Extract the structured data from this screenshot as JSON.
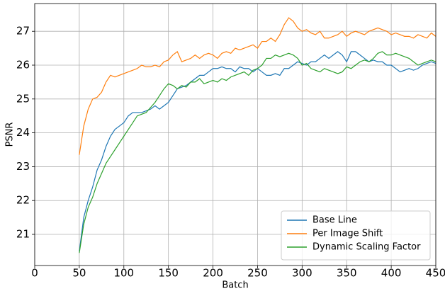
{
  "chart_data": {
    "type": "line",
    "xlabel": "Batch",
    "ylabel": "PSNR",
    "x": [
      50,
      55,
      60,
      65,
      70,
      75,
      80,
      85,
      90,
      95,
      100,
      105,
      110,
      115,
      120,
      125,
      130,
      135,
      140,
      145,
      150,
      155,
      160,
      165,
      170,
      175,
      180,
      185,
      190,
      195,
      200,
      205,
      210,
      215,
      220,
      225,
      230,
      235,
      240,
      245,
      250,
      255,
      260,
      265,
      270,
      275,
      280,
      285,
      290,
      295,
      300,
      305,
      310,
      315,
      320,
      325,
      330,
      335,
      340,
      345,
      350,
      355,
      360,
      365,
      370,
      375,
      380,
      385,
      390,
      395,
      400,
      405,
      410,
      415,
      420,
      425,
      430,
      435,
      440,
      445,
      450
    ],
    "series": [
      {
        "name": "Base Line",
        "color": "#1f77b4",
        "values": [
          20.5,
          21.5,
          22.0,
          22.4,
          22.9,
          23.2,
          23.6,
          23.9,
          24.1,
          24.2,
          24.3,
          24.5,
          24.6,
          24.6,
          24.6,
          24.65,
          24.7,
          24.8,
          24.7,
          24.8,
          24.9,
          25.1,
          25.3,
          25.35,
          25.4,
          25.5,
          25.6,
          25.7,
          25.7,
          25.8,
          25.9,
          25.9,
          25.95,
          25.9,
          25.9,
          25.8,
          25.95,
          25.9,
          25.9,
          25.8,
          25.9,
          25.8,
          25.7,
          25.7,
          25.75,
          25.7,
          25.9,
          25.9,
          26.0,
          26.1,
          26.05,
          26.0,
          26.1,
          26.1,
          26.2,
          26.3,
          26.2,
          26.3,
          26.4,
          26.3,
          26.1,
          26.4,
          26.4,
          26.3,
          26.2,
          26.1,
          26.15,
          26.1,
          26.1,
          26.0,
          26.0,
          25.9,
          25.8,
          25.85,
          25.9,
          25.85,
          25.9,
          26.0,
          26.05,
          26.1,
          26.05
        ]
      },
      {
        "name": "Per Image Shift",
        "color": "#ff7f0e",
        "values": [
          23.35,
          24.2,
          24.7,
          25.0,
          25.05,
          25.2,
          25.5,
          25.7,
          25.65,
          25.7,
          25.75,
          25.8,
          25.85,
          25.9,
          26.0,
          25.95,
          25.95,
          26.0,
          25.95,
          26.1,
          26.15,
          26.3,
          26.4,
          26.1,
          26.15,
          26.2,
          26.3,
          26.2,
          26.3,
          26.35,
          26.3,
          26.2,
          26.35,
          26.4,
          26.35,
          26.5,
          26.45,
          26.5,
          26.55,
          26.6,
          26.5,
          26.7,
          26.7,
          26.8,
          26.7,
          26.9,
          27.2,
          27.4,
          27.3,
          27.1,
          27.0,
          27.05,
          26.95,
          26.9,
          27.0,
          26.8,
          26.8,
          26.85,
          26.9,
          27.0,
          26.85,
          26.95,
          27.0,
          26.95,
          26.9,
          27.0,
          27.05,
          27.1,
          27.05,
          27.0,
          26.9,
          26.95,
          26.9,
          26.85,
          26.85,
          26.8,
          26.9,
          26.85,
          26.8,
          26.95,
          26.85
        ]
      },
      {
        "name": "Dynamic Scaling Factor",
        "color": "#2ca02c",
        "values": [
          20.45,
          21.3,
          21.8,
          22.1,
          22.5,
          22.8,
          23.1,
          23.3,
          23.5,
          23.7,
          23.9,
          24.1,
          24.3,
          24.5,
          24.55,
          24.6,
          24.75,
          24.9,
          25.1,
          25.3,
          25.45,
          25.4,
          25.3,
          25.4,
          25.35,
          25.5,
          25.5,
          25.6,
          25.45,
          25.5,
          25.55,
          25.5,
          25.6,
          25.55,
          25.65,
          25.7,
          25.75,
          25.8,
          25.7,
          25.85,
          25.9,
          26.0,
          26.2,
          26.2,
          26.3,
          26.25,
          26.3,
          26.35,
          26.3,
          26.2,
          26.0,
          26.05,
          25.9,
          25.85,
          25.8,
          25.9,
          25.85,
          25.8,
          25.75,
          25.8,
          25.95,
          25.9,
          26.0,
          26.1,
          26.15,
          26.1,
          26.2,
          26.35,
          26.4,
          26.3,
          26.3,
          26.35,
          26.3,
          26.25,
          26.2,
          26.1,
          26.0,
          26.05,
          26.1,
          26.15,
          26.1
        ]
      }
    ],
    "xlim": [
      0,
      450
    ],
    "ylim": [
      20.08,
      27.82
    ],
    "xticks": [
      0,
      50,
      100,
      150,
      200,
      250,
      300,
      350,
      400,
      450
    ],
    "yticks": [
      21,
      22,
      23,
      24,
      25,
      26,
      27
    ],
    "grid": true,
    "legend": "lower right"
  }
}
